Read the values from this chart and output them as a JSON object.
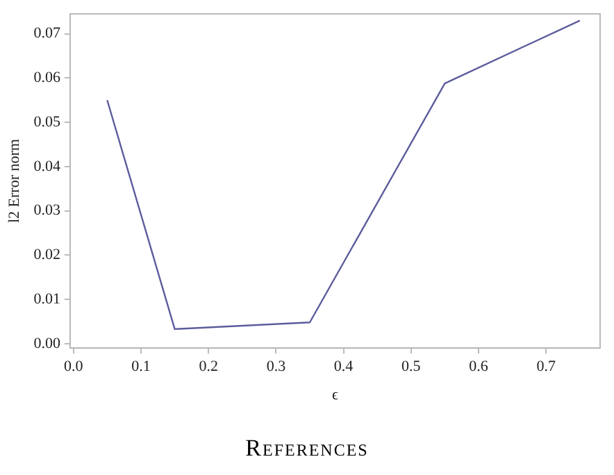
{
  "chart_data": {
    "type": "line",
    "xlabel": "ϵ",
    "ylabel": "l2 Error norm",
    "x": [
      0.05,
      0.15,
      0.35,
      0.55,
      0.75
    ],
    "series": [
      {
        "color": "#5c5c9c",
        "values": [
          0.055,
          0.0033,
          0.0048,
          0.0588,
          0.073
        ]
      }
    ],
    "xlim": [
      -0.005,
      0.78
    ],
    "xticks": [
      {
        "value": 0,
        "label": "0.0"
      },
      0.1,
      0.2,
      0.3,
      0.4,
      0.5,
      0.6,
      0.7
    ],
    "ylim": [
      -0.001,
      0.0745
    ],
    "yticks": [
      {
        "value": 0,
        "label": "0.00"
      },
      0.01,
      0.02,
      0.03,
      0.04,
      0.05,
      0.06,
      0.07
    ],
    "grid": false,
    "legend": false,
    "marker": "none",
    "line_style": "solid",
    "annotations": [
      "References"
    ]
  }
}
